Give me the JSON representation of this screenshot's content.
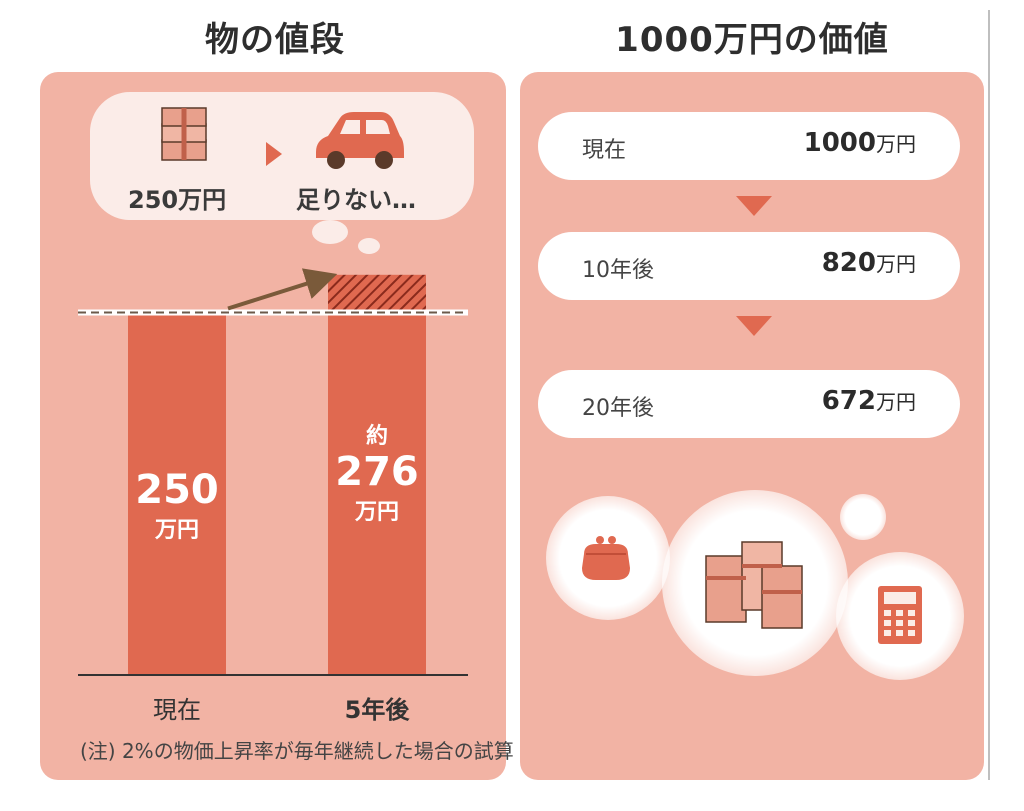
{
  "left_title": "物の値段",
  "right_title": "1000万円の価値",
  "bubble": {
    "money_label": "250万円",
    "car_label": "足りない…"
  },
  "chart_data": {
    "type": "bar",
    "categories": [
      "現在",
      "5年後"
    ],
    "values": [
      250,
      276
    ],
    "bar_labels": [
      {
        "prefix": "",
        "value": "250",
        "unit": "万円"
      },
      {
        "prefix": "約",
        "value": "276",
        "unit": "万円"
      }
    ],
    "ylim": [
      0,
      300
    ],
    "reference_line": 250,
    "colors": {
      "bar": "#e06950",
      "increase_hatch": "#b83a2a",
      "arrow": "#7a5a3a"
    }
  },
  "footnote": "(注) 2%の物価上昇率が毎年継続した場合の試算",
  "value_rows": [
    {
      "label": "現在",
      "value": "1000",
      "unit": "万円"
    },
    {
      "label": "10年後",
      "value": "820",
      "unit": "万円"
    },
    {
      "label": "20年後",
      "value": "672",
      "unit": "万円"
    }
  ],
  "icons": [
    "money-stack-icon",
    "car-icon",
    "coin-purse-icon",
    "money-bundles-icon",
    "calculator-icon"
  ],
  "colors": {
    "panel": "#f2b3a4",
    "accent": "#e06950",
    "bubble": "#fbece8"
  }
}
